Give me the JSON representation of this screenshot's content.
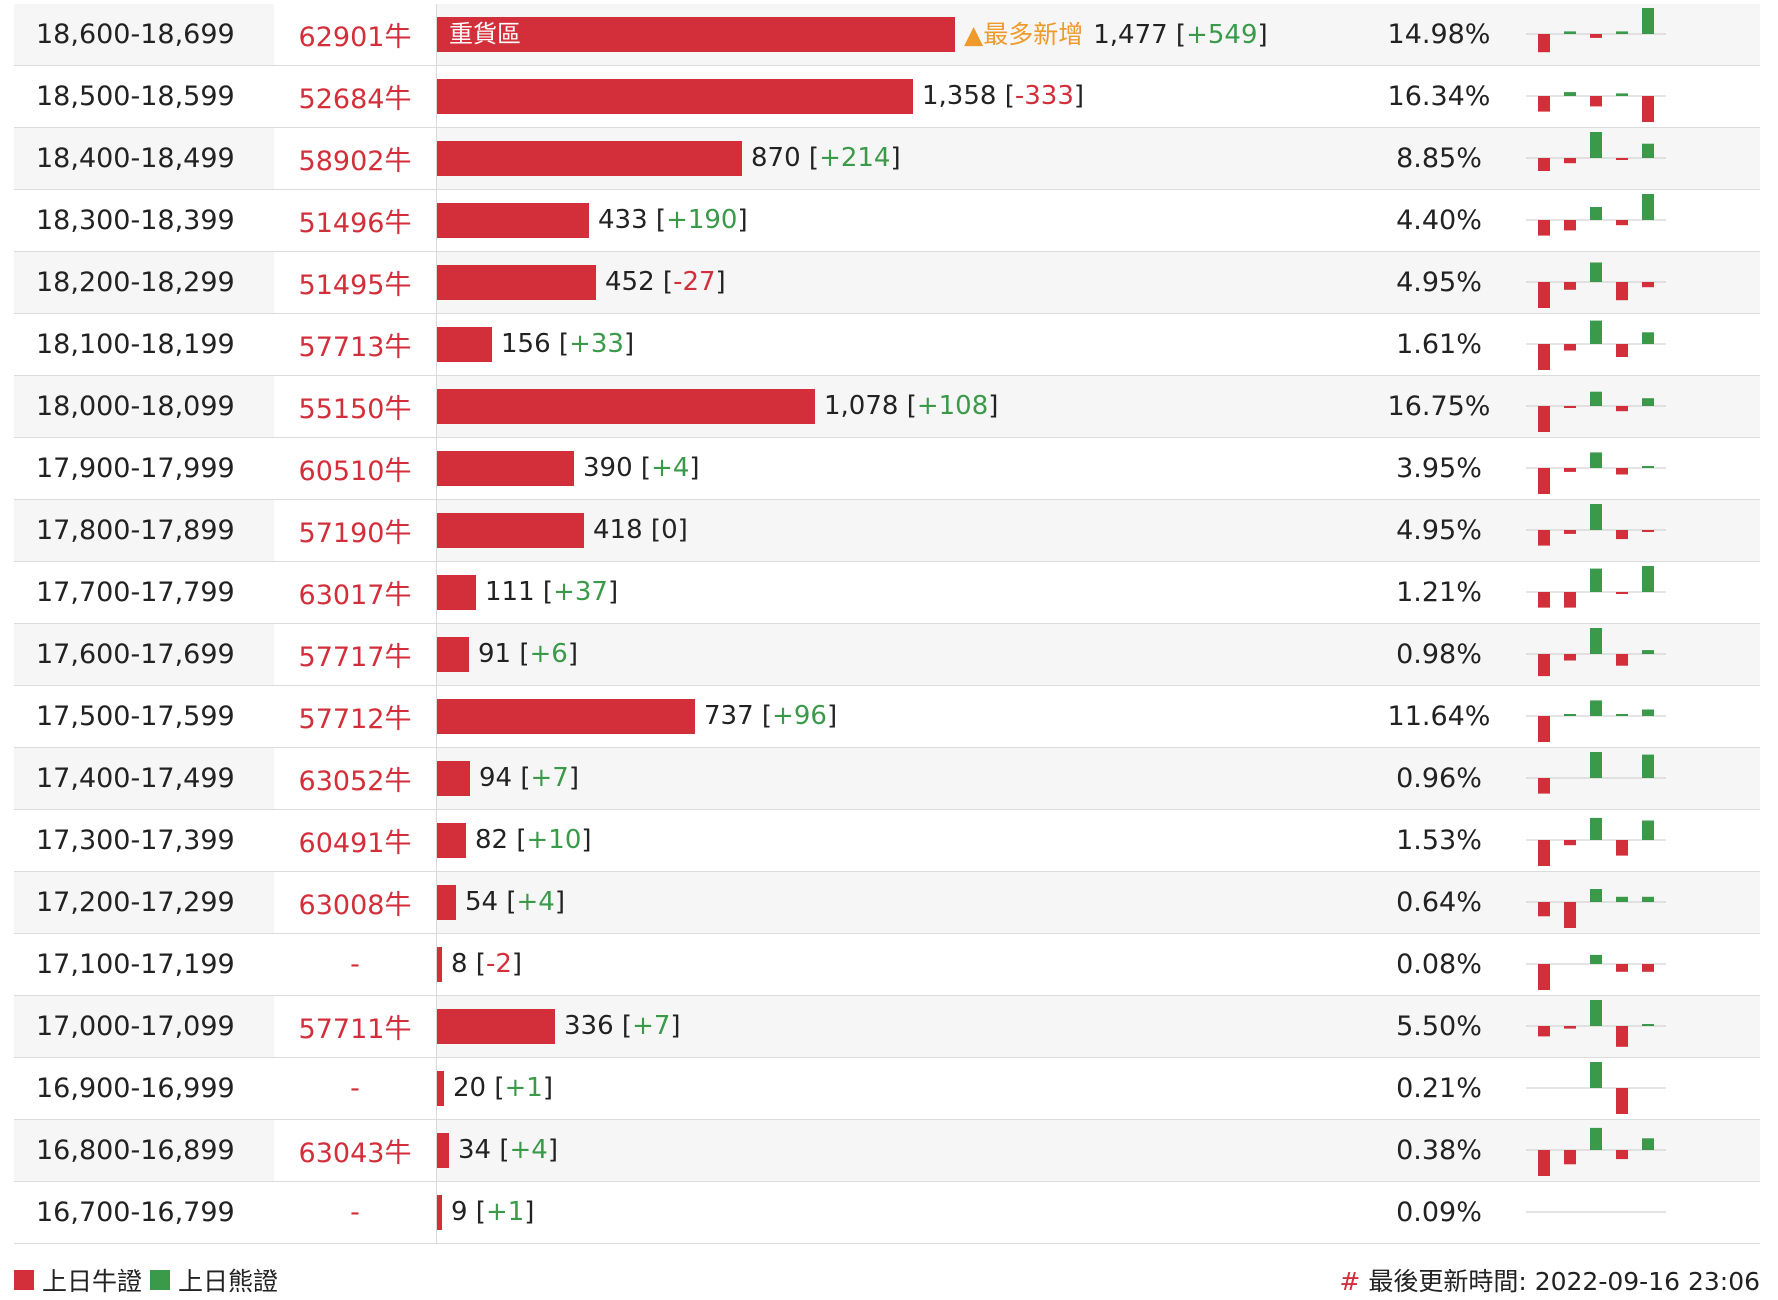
{
  "colors": {
    "bull": "#d32f3a",
    "bear": "#3a9a4a",
    "highlight": "#ef9a2a"
  },
  "bar_max": 1477,
  "rows": [
    {
      "range": "18,600-18,699",
      "warrant": "62901牛",
      "count": 1477,
      "count_text": "1,477",
      "change_text": "+549",
      "change_dir": "up",
      "pct": "14.98%",
      "bar_label": "重貨區",
      "badge": "▲最多新增",
      "spark": [
        -0.7,
        0.1,
        -0.15,
        0.1,
        1.0
      ]
    },
    {
      "range": "18,500-18,599",
      "warrant": "52684牛",
      "count": 1358,
      "count_text": "1,358",
      "change_text": "-333",
      "change_dir": "down",
      "pct": "16.34%",
      "bar_label": "",
      "badge": "",
      "spark": [
        -0.6,
        0.15,
        -0.4,
        0.1,
        -1.0
      ]
    },
    {
      "range": "18,400-18,499",
      "warrant": "58902牛",
      "count": 870,
      "count_text": "870",
      "change_text": "+214",
      "change_dir": "up",
      "pct": "8.85%",
      "bar_label": "",
      "badge": "",
      "spark": [
        -0.5,
        -0.2,
        1.0,
        -0.05,
        0.55
      ]
    },
    {
      "range": "18,300-18,399",
      "warrant": "51496牛",
      "count": 433,
      "count_text": "433",
      "change_text": "+190",
      "change_dir": "up",
      "pct": "4.40%",
      "bar_label": "",
      "badge": "",
      "spark": [
        -0.6,
        -0.4,
        0.5,
        -0.2,
        1.0
      ]
    },
    {
      "range": "18,200-18,299",
      "warrant": "51495牛",
      "count": 452,
      "count_text": "452",
      "change_text": "-27",
      "change_dir": "down",
      "pct": "4.95%",
      "bar_label": "",
      "badge": "",
      "spark": [
        -1.0,
        -0.3,
        0.75,
        -0.7,
        -0.2
      ]
    },
    {
      "range": "18,100-18,199",
      "warrant": "57713牛",
      "count": 156,
      "count_text": "156",
      "change_text": "+33",
      "change_dir": "up",
      "pct": "1.61%",
      "bar_label": "",
      "badge": "",
      "spark": [
        -1.0,
        -0.25,
        0.9,
        -0.5,
        0.45
      ]
    },
    {
      "range": "18,000-18,099",
      "warrant": "55150牛",
      "count": 1078,
      "count_text": "1,078",
      "change_text": "+108",
      "change_dir": "up",
      "pct": "16.75%",
      "bar_label": "",
      "badge": "",
      "spark": [
        -1.0,
        -0.05,
        0.55,
        -0.2,
        0.3
      ]
    },
    {
      "range": "17,900-17,999",
      "warrant": "60510牛",
      "count": 390,
      "count_text": "390",
      "change_text": "+4",
      "change_dir": "up",
      "pct": "3.95%",
      "bar_label": "",
      "badge": "",
      "spark": [
        -1.0,
        -0.15,
        0.6,
        -0.25,
        0.05
      ]
    },
    {
      "range": "17,800-17,899",
      "warrant": "57190牛",
      "count": 418,
      "count_text": "418",
      "change_text": "0",
      "change_dir": "neutral",
      "pct": "4.95%",
      "bar_label": "",
      "badge": "",
      "spark": [
        -0.6,
        -0.15,
        1.0,
        -0.35,
        -0.05
      ]
    },
    {
      "range": "17,700-17,799",
      "warrant": "63017牛",
      "count": 111,
      "count_text": "111",
      "change_text": "+37",
      "change_dir": "up",
      "pct": "1.21%",
      "bar_label": "",
      "badge": "",
      "spark": [
        -0.6,
        -0.6,
        0.9,
        -0.05,
        1.0
      ]
    },
    {
      "range": "17,600-17,699",
      "warrant": "57717牛",
      "count": 91,
      "count_text": "91",
      "change_text": "+6",
      "change_dir": "up",
      "pct": "0.98%",
      "bar_label": "",
      "badge": "",
      "spark": [
        -0.85,
        -0.25,
        1.0,
        -0.45,
        0.15
      ]
    },
    {
      "range": "17,500-17,599",
      "warrant": "57712牛",
      "count": 737,
      "count_text": "737",
      "change_text": "+96",
      "change_dir": "up",
      "pct": "11.64%",
      "bar_label": "",
      "badge": "",
      "spark": [
        -1.0,
        0.05,
        0.6,
        0.05,
        0.25
      ]
    },
    {
      "range": "17,400-17,499",
      "warrant": "63052牛",
      "count": 94,
      "count_text": "94",
      "change_text": "+7",
      "change_dir": "up",
      "pct": "0.96%",
      "bar_label": "",
      "badge": "",
      "spark": [
        -0.6,
        0,
        1.0,
        0,
        0.9
      ]
    },
    {
      "range": "17,300-17,399",
      "warrant": "60491牛",
      "count": 82,
      "count_text": "82",
      "change_text": "+10",
      "change_dir": "up",
      "pct": "1.53%",
      "bar_label": "",
      "badge": "",
      "spark": [
        -1.0,
        -0.2,
        0.85,
        -0.6,
        0.75
      ]
    },
    {
      "range": "17,200-17,299",
      "warrant": "63008牛",
      "count": 54,
      "count_text": "54",
      "change_text": "+4",
      "change_dir": "up",
      "pct": "0.64%",
      "bar_label": "",
      "badge": "",
      "spark": [
        -0.55,
        -1.0,
        0.5,
        0.2,
        0.2
      ]
    },
    {
      "range": "17,100-17,199",
      "warrant": "-",
      "count": 8,
      "count_text": "8",
      "change_text": "-2",
      "change_dir": "down",
      "pct": "0.08%",
      "bar_label": "",
      "badge": "",
      "spark": [
        -1.0,
        0,
        0.35,
        -0.3,
        -0.3
      ]
    },
    {
      "range": "17,000-17,099",
      "warrant": "57711牛",
      "count": 336,
      "count_text": "336",
      "change_text": "+7",
      "change_dir": "up",
      "pct": "5.50%",
      "bar_label": "",
      "badge": "",
      "spark": [
        -0.4,
        -0.1,
        1.0,
        -0.8,
        0.05
      ]
    },
    {
      "range": "16,900-16,999",
      "warrant": "-",
      "count": 20,
      "count_text": "20",
      "change_text": "+1",
      "change_dir": "up",
      "pct": "0.21%",
      "bar_label": "",
      "badge": "",
      "spark": [
        0,
        0,
        1.0,
        -1.0,
        0
      ]
    },
    {
      "range": "16,800-16,899",
      "warrant": "63043牛",
      "count": 34,
      "count_text": "34",
      "change_text": "+4",
      "change_dir": "up",
      "pct": "0.38%",
      "bar_label": "",
      "badge": "",
      "spark": [
        -1.0,
        -0.55,
        0.85,
        -0.35,
        0.45
      ]
    },
    {
      "range": "16,700-16,799",
      "warrant": "-",
      "count": 9,
      "count_text": "9",
      "change_text": "+1",
      "change_dir": "up",
      "pct": "0.09%",
      "bar_label": "",
      "badge": "",
      "spark": [
        0,
        0,
        0,
        0,
        0
      ]
    }
  ],
  "legend": {
    "bull_label": "上日牛證",
    "bear_label": "上日熊證"
  },
  "footer": {
    "hash": "#",
    "updated_label": "最後更新時間:",
    "updated_time": "2022-09-16 23:06"
  }
}
